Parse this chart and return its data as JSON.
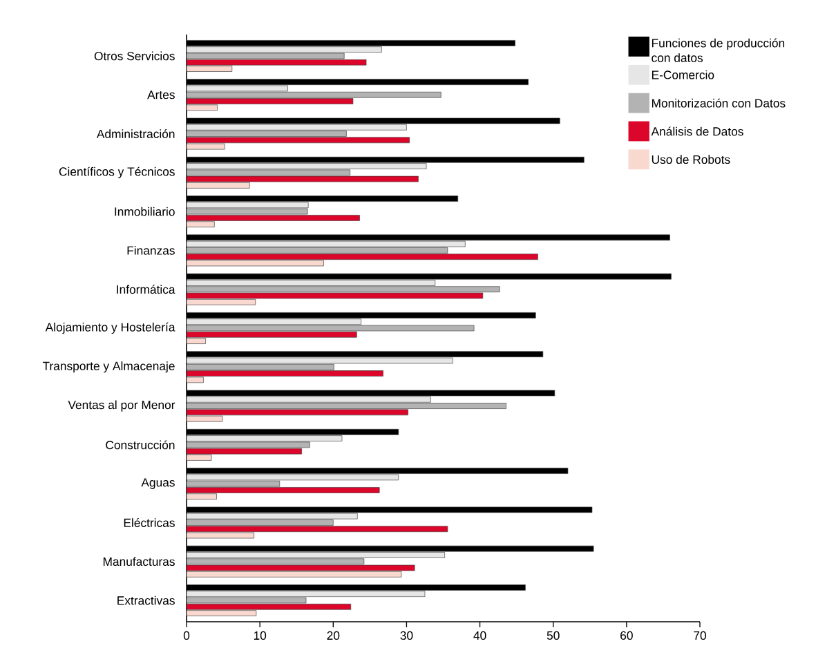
{
  "chart_data": {
    "type": "bar",
    "orientation": "horizontal",
    "categories": [
      "Otros Servicios",
      "Artes",
      "Administración",
      "Científicos y Técnicos",
      "Inmobiliario",
      "Finanzas",
      "Informática",
      "Alojamiento y Hostelería",
      "Transporte y Almacenaje",
      "Ventas al por Menor",
      "Construcción",
      "Aguas",
      "Eléctricas",
      "Manufacturas",
      "Extractivas"
    ],
    "series": [
      {
        "name": "Funciones de producción con datos",
        "color": "#000000",
        "values": [
          44.8,
          46.6,
          50.9,
          54.2,
          37.0,
          65.9,
          66.1,
          47.6,
          48.6,
          50.2,
          28.9,
          52.0,
          55.3,
          55.5,
          46.2
        ]
      },
      {
        "name": "E-Comercio",
        "color": "#e6e6e6",
        "values": [
          26.6,
          13.8,
          30.0,
          32.7,
          16.6,
          38.0,
          33.9,
          23.8,
          36.3,
          33.3,
          21.2,
          28.9,
          23.3,
          35.2,
          32.5
        ]
      },
      {
        "name": "Monitorización con Datos",
        "color": "#b3b3b3",
        "values": [
          21.5,
          34.7,
          21.8,
          22.3,
          16.5,
          35.6,
          42.7,
          39.2,
          20.1,
          43.6,
          16.8,
          12.7,
          20.0,
          24.2,
          16.3
        ]
      },
      {
        "name": "Análisis de Datos",
        "color": "#dc062b",
        "values": [
          24.5,
          22.7,
          30.4,
          31.6,
          23.6,
          47.9,
          40.4,
          23.2,
          26.8,
          30.2,
          15.7,
          26.3,
          35.6,
          31.1,
          22.4
        ]
      },
      {
        "name": "Uso de Robots",
        "color": "#f9d8cf",
        "values": [
          6.2,
          4.2,
          5.2,
          8.6,
          3.8,
          18.7,
          9.4,
          2.6,
          2.3,
          4.9,
          3.4,
          4.1,
          9.2,
          29.3,
          9.5
        ]
      }
    ],
    "xlim": [
      0,
      70
    ],
    "xticks": [
      0,
      10,
      20,
      30,
      40,
      50,
      60,
      70
    ],
    "grid": false,
    "legend": "top right"
  }
}
